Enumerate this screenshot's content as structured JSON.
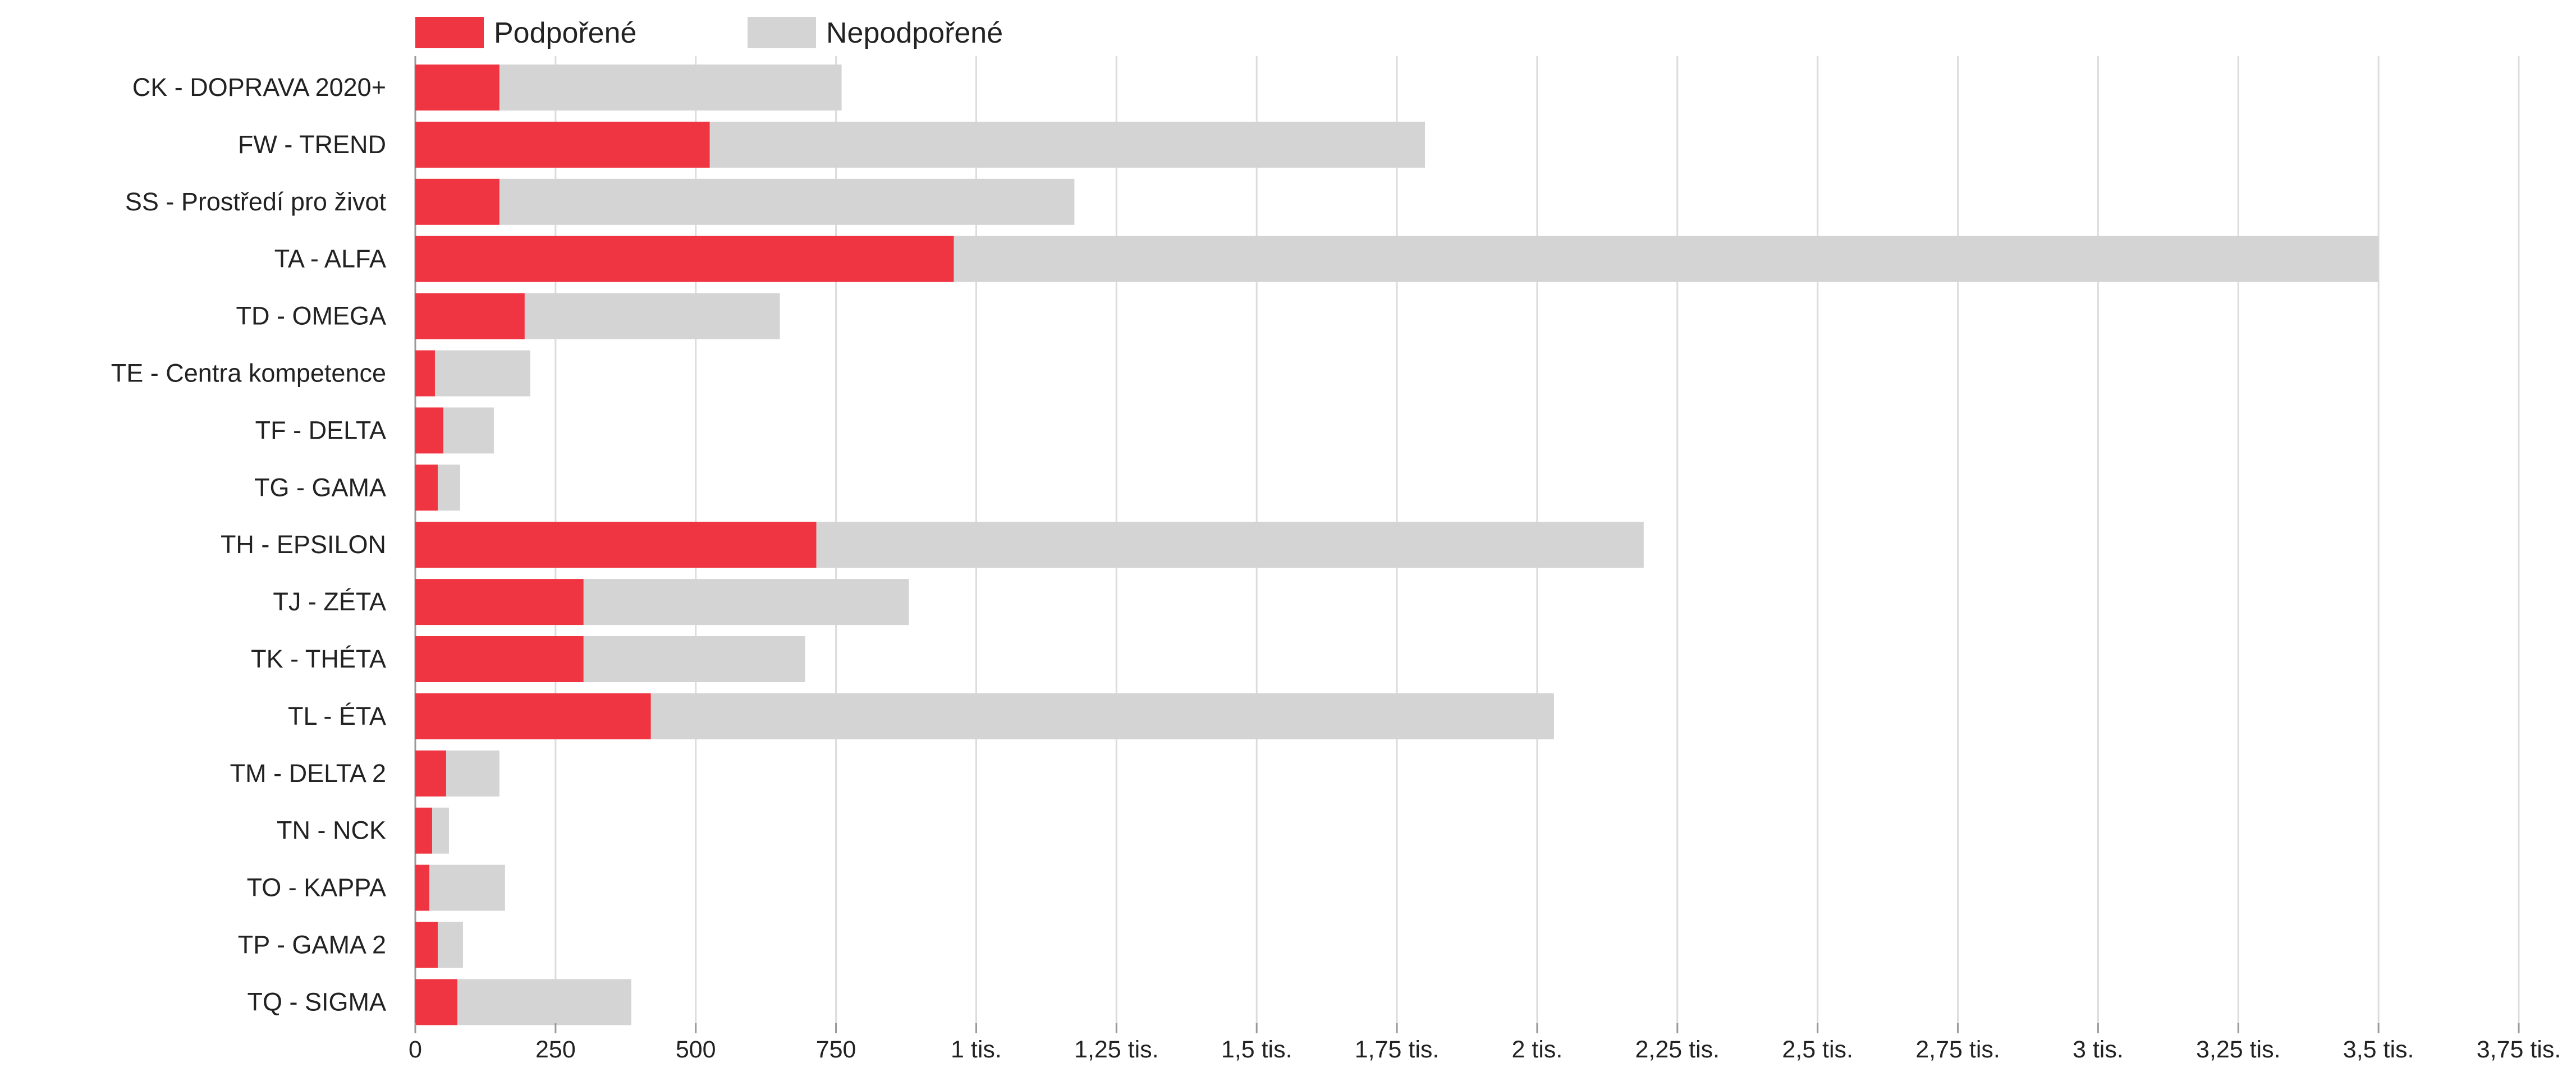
{
  "chart_data": {
    "type": "bar",
    "orientation": "horizontal",
    "stacked": true,
    "categories": [
      "CK - DOPRAVA 2020+",
      "FW - TREND",
      "SS - Prostředí pro život",
      "TA - ALFA",
      "TD - OMEGA",
      "TE - Centra kompetence",
      "TF - DELTA",
      "TG - GAMA",
      "TH - EPSILON",
      "TJ - ZÉTA",
      "TK - THÉTA",
      "TL - ÉTA",
      "TM - DELTA 2",
      "TN - NCK",
      "TO - KAPPA",
      "TP - GAMA 2",
      "TQ - SIGMA"
    ],
    "series": [
      {
        "name": "Podpořené",
        "color": "#f03542",
        "values": [
          150,
          525,
          150,
          960,
          195,
          35,
          50,
          40,
          715,
          300,
          300,
          420,
          55,
          30,
          25,
          40,
          75
        ]
      },
      {
        "name": "Nepodpořené",
        "color": "#d4d4d4",
        "values": [
          610,
          1275,
          1025,
          2540,
          455,
          170,
          90,
          40,
          1475,
          580,
          395,
          1610,
          95,
          30,
          135,
          45,
          310
        ]
      }
    ],
    "xlim": [
      0,
      3750
    ],
    "ticks": [
      {
        "value": 0,
        "label": "0"
      },
      {
        "value": 250,
        "label": "250"
      },
      {
        "value": 500,
        "label": "500"
      },
      {
        "value": 750,
        "label": "750"
      },
      {
        "value": 1000,
        "label": "1 tis."
      },
      {
        "value": 1250,
        "label": "1,25 tis."
      },
      {
        "value": 1500,
        "label": "1,5 tis."
      },
      {
        "value": 1750,
        "label": "1,75 tis."
      },
      {
        "value": 2000,
        "label": "2 tis."
      },
      {
        "value": 2250,
        "label": "2,25 tis."
      },
      {
        "value": 2500,
        "label": "2,5 tis."
      },
      {
        "value": 2750,
        "label": "2,75 tis."
      },
      {
        "value": 3000,
        "label": "3 tis."
      },
      {
        "value": 3250,
        "label": "3,25 tis."
      },
      {
        "value": 3500,
        "label": "3,5 tis."
      },
      {
        "value": 3750,
        "label": "3,75 tis."
      }
    ],
    "grid": true,
    "legend_position": "top-left",
    "title": "",
    "xlabel": "",
    "ylabel": ""
  }
}
